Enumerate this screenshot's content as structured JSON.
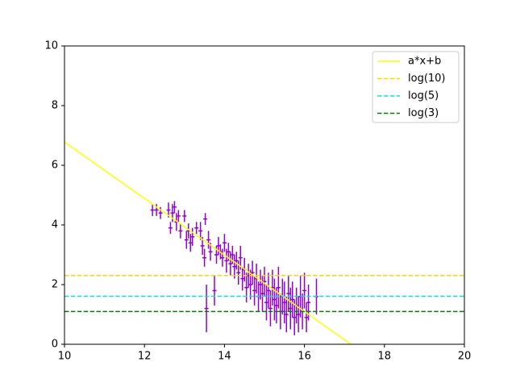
{
  "chart_data": {
    "type": "errorbar",
    "xlim": [
      10,
      20
    ],
    "ylim": [
      0,
      10
    ],
    "xticks": [
      10,
      12,
      14,
      16,
      18,
      20
    ],
    "yticks": [
      0,
      2,
      4,
      6,
      8,
      10
    ],
    "legend": "upper right",
    "series": [
      {
        "name": "a*x+b",
        "color": "#ffff00",
        "dashed": false,
        "x": [
          10,
          17.16
        ],
        "values": [
          6.78,
          0
        ]
      },
      {
        "name": "log(10)",
        "color": "#ffd700",
        "dashed": true,
        "x": [
          10,
          20
        ],
        "values": [
          2.303,
          2.303
        ]
      },
      {
        "name": "log(5)",
        "color": "#00e5e5",
        "dashed": true,
        "x": [
          10,
          20
        ],
        "values": [
          1.609,
          1.609
        ]
      },
      {
        "name": "log(3)",
        "color": "#008000",
        "dashed": true,
        "x": [
          10,
          20
        ],
        "values": [
          1.099,
          1.099
        ]
      }
    ],
    "errorbars": {
      "color": "#9400d3",
      "xerr": 0.05,
      "x": [
        12.2,
        12.3,
        12.4,
        12.6,
        12.65,
        12.7,
        12.75,
        12.8,
        12.85,
        12.9,
        13.0,
        13.05,
        13.1,
        13.15,
        13.2,
        13.3,
        13.4,
        13.45,
        13.5,
        13.52,
        13.55,
        13.6,
        13.65,
        13.75,
        13.8,
        13.85,
        13.9,
        13.95,
        14.0,
        14.05,
        14.1,
        14.15,
        14.2,
        14.25,
        14.3,
        14.35,
        14.4,
        14.45,
        14.5,
        14.55,
        14.6,
        14.65,
        14.7,
        14.75,
        14.8,
        14.85,
        14.9,
        14.95,
        15.0,
        15.05,
        15.1,
        15.15,
        15.2,
        15.25,
        15.3,
        15.35,
        15.4,
        15.45,
        15.5,
        15.55,
        15.6,
        15.65,
        15.7,
        15.75,
        15.8,
        15.85,
        15.9,
        15.95,
        16.0,
        16.05,
        16.1,
        16.3
      ],
      "values": [
        4.5,
        4.5,
        4.4,
        4.5,
        3.9,
        4.4,
        4.6,
        4.1,
        4.3,
        3.8,
        4.3,
        3.5,
        3.8,
        3.4,
        3.6,
        3.9,
        3.8,
        3.3,
        2.9,
        4.2,
        1.2,
        3.5,
        3.1,
        1.8,
        3.0,
        3.3,
        3.1,
        2.9,
        3.4,
        2.8,
        3.1,
        2.7,
        3.0,
        2.6,
        2.8,
        2.4,
        2.9,
        2.2,
        2.5,
        1.9,
        2.3,
        2.0,
        2.4,
        1.8,
        2.2,
        1.6,
        2.0,
        1.7,
        2.1,
        1.4,
        1.8,
        1.2,
        1.9,
        1.5,
        1.3,
        1.9,
        1.1,
        1.6,
        1.4,
        1.0,
        1.7,
        1.2,
        1.5,
        0.9,
        1.3,
        1.0,
        1.6,
        1.1,
        1.8,
        0.9,
        1.4,
        1.6
      ],
      "yerr": [
        0.2,
        0.2,
        0.2,
        0.25,
        0.2,
        0.3,
        0.2,
        0.3,
        0.2,
        0.25,
        0.2,
        0.3,
        0.25,
        0.3,
        0.3,
        0.2,
        0.3,
        0.3,
        0.3,
        0.2,
        0.8,
        0.3,
        0.3,
        0.5,
        0.3,
        0.3,
        0.25,
        0.3,
        0.3,
        0.4,
        0.3,
        0.4,
        0.3,
        0.4,
        0.3,
        0.4,
        0.4,
        0.4,
        0.4,
        0.5,
        0.4,
        0.5,
        0.4,
        0.5,
        0.5,
        0.5,
        0.5,
        0.6,
        0.5,
        0.6,
        0.6,
        0.6,
        0.6,
        0.7,
        0.6,
        0.7,
        0.6,
        0.6,
        0.7,
        0.6,
        0.6,
        0.7,
        0.6,
        0.6,
        0.6,
        0.6,
        0.7,
        0.6,
        0.6,
        0.5,
        0.6,
        0.6
      ]
    }
  }
}
